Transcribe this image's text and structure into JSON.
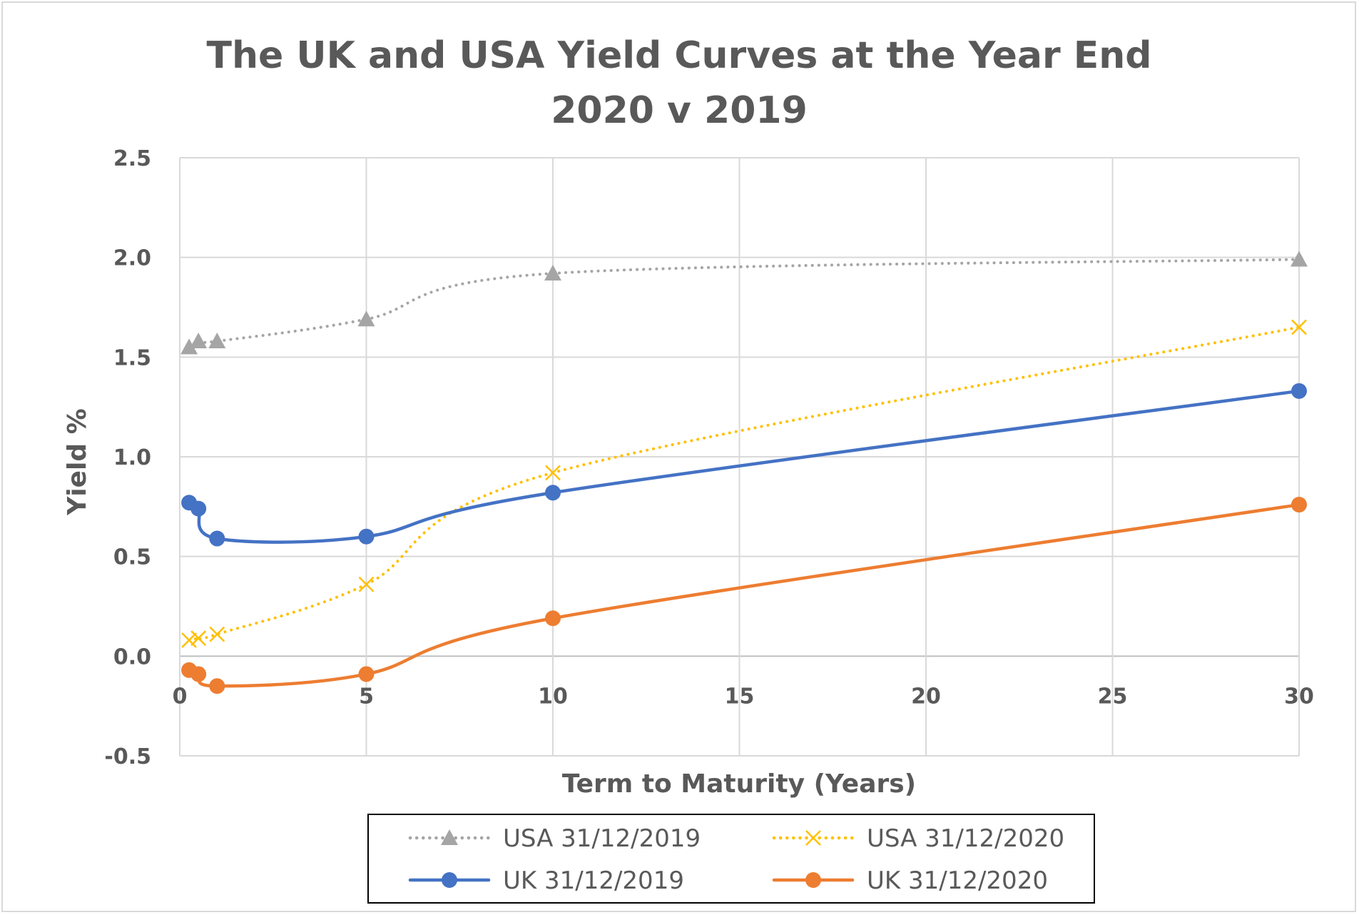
{
  "chart_data": {
    "type": "line",
    "title": [
      "The UK and USA Yield Curves at the Year End",
      "2020 v 2019"
    ],
    "xlabel": "Term to Maturity (Years)",
    "ylabel": "Yield %",
    "xlim": [
      0,
      30
    ],
    "ylim": [
      -0.5,
      2.5
    ],
    "xticks": [
      0,
      5,
      10,
      15,
      20,
      25,
      30
    ],
    "xtick_labels": [
      "0",
      "5",
      "10",
      "15",
      "20",
      "25",
      "30"
    ],
    "yticks": [
      -0.5,
      0.0,
      0.5,
      1.0,
      1.5,
      2.0,
      2.5
    ],
    "ytick_labels": [
      "-0.5",
      "0.0",
      "0.5",
      "1.0",
      "1.5",
      "2.0",
      "2.5"
    ],
    "grid": true,
    "legend_position": "bottom",
    "series": [
      {
        "name": "USA 31/12/2019",
        "color": "#a5a5a5",
        "line_style": "dotted",
        "marker": "triangle",
        "x": [
          0.25,
          0.5,
          1,
          5,
          10,
          30
        ],
        "y": [
          1.55,
          1.58,
          1.58,
          1.69,
          1.92,
          1.99
        ]
      },
      {
        "name": "USA 31/12/2020",
        "color": "#ffc000",
        "line_style": "dotted",
        "marker": "x",
        "x": [
          0.25,
          0.5,
          1,
          5,
          10,
          30
        ],
        "y": [
          0.08,
          0.09,
          0.11,
          0.36,
          0.92,
          1.65
        ]
      },
      {
        "name": "UK 31/12/2019",
        "color": "#4472c4",
        "line_style": "solid",
        "marker": "circle",
        "x": [
          0.25,
          0.5,
          1,
          5,
          10,
          30
        ],
        "y": [
          0.77,
          0.74,
          0.59,
          0.6,
          0.82,
          1.33
        ]
      },
      {
        "name": "UK 31/12/2020",
        "color": "#ed7d31",
        "line_style": "solid",
        "marker": "circle",
        "x": [
          0.25,
          0.5,
          1,
          5,
          10,
          30
        ],
        "y": [
          -0.07,
          -0.09,
          -0.15,
          -0.09,
          0.19,
          0.76
        ]
      }
    ]
  }
}
